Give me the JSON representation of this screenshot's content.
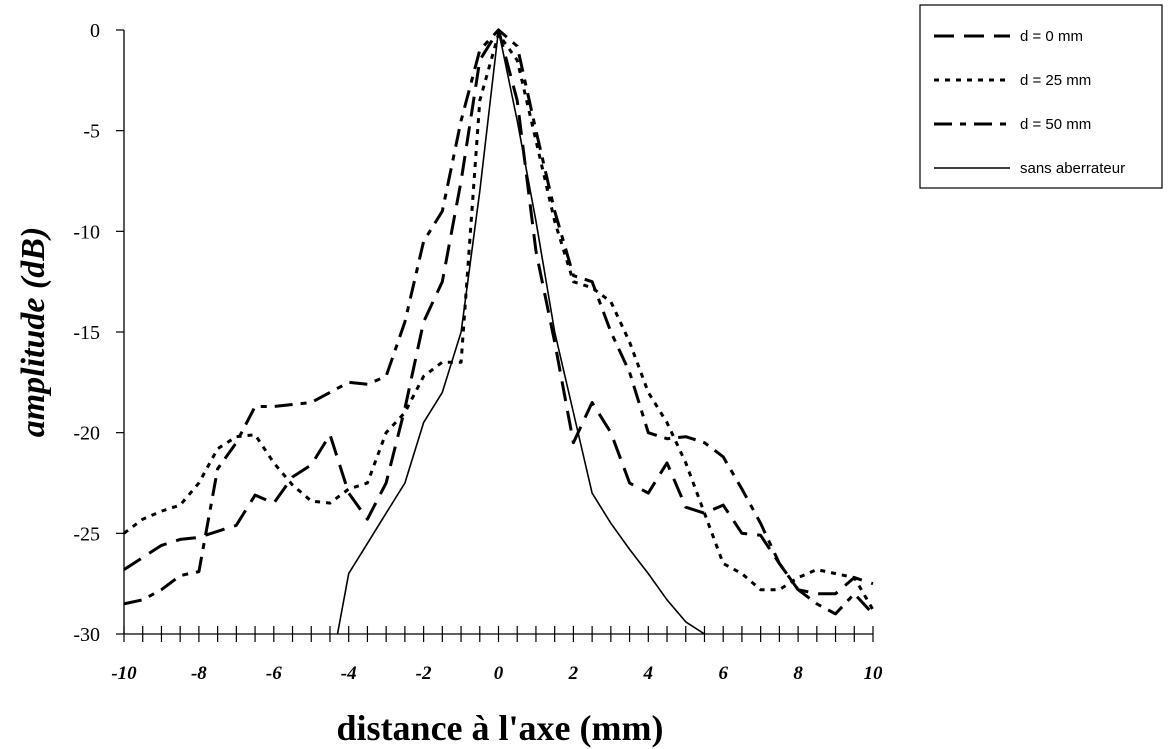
{
  "chart_data": {
    "type": "line",
    "xlabel": "distance à l'axe (mm)",
    "ylabel": "amplitude (dB)",
    "xlim": [
      -10,
      10
    ],
    "ylim": [
      -30,
      0
    ],
    "xticks": [
      -10,
      -8,
      -6,
      -4,
      -2,
      0,
      2,
      4,
      6,
      8,
      10
    ],
    "xtick_labels": [
      "-10",
      "-8",
      "-6",
      "-4",
      "-2",
      "0",
      "2",
      "4",
      "6",
      "8",
      "10"
    ],
    "yticks": [
      0,
      -5,
      -10,
      -15,
      -20,
      -25,
      -30
    ],
    "ytick_labels": [
      "0",
      "-5",
      "-10",
      "-15",
      "-20",
      "-25",
      "-30"
    ],
    "minor_xtick_step": 0.5,
    "grid": false,
    "legend_position": "top-right",
    "series": [
      {
        "name": "d = 0 mm",
        "style": "long-dash",
        "color": "#000000",
        "x": [
          -10,
          -9.5,
          -9,
          -8.5,
          -8,
          -7.5,
          -7,
          -6.5,
          -6,
          -5.5,
          -5,
          -4.5,
          -4,
          -3.5,
          -3,
          -2.5,
          -2,
          -1.5,
          -1,
          -0.5,
          0,
          0.5,
          1,
          1.5,
          2,
          2.5,
          3,
          3.5,
          4,
          4.5,
          5,
          5.5,
          6,
          6.5,
          7,
          7.5,
          8,
          8.5,
          9,
          9.5,
          10
        ],
        "y": [
          -26.8,
          -26.2,
          -25.6,
          -25.3,
          -25.2,
          -24.9,
          -24.6,
          -23.1,
          -23.5,
          -22.2,
          -21.6,
          -20.1,
          -23.0,
          -24.3,
          -22.5,
          -18.8,
          -14.5,
          -12.5,
          -7.5,
          -1.5,
          0.0,
          -3.5,
          -11.0,
          -15.5,
          -20.5,
          -18.5,
          -20.0,
          -22.5,
          -23.0,
          -21.5,
          -23.7,
          -24.0,
          -23.6,
          -25.0,
          -25.1,
          -26.5,
          -27.8,
          -28.0,
          -28.0,
          -27.2,
          -27.5
        ]
      },
      {
        "name": "d = 25 mm",
        "style": "dotted",
        "color": "#000000",
        "x": [
          -10,
          -9.5,
          -9,
          -8.5,
          -8,
          -7.5,
          -7,
          -6.5,
          -6,
          -5.5,
          -5,
          -4.5,
          -4,
          -3.5,
          -3,
          -2.5,
          -2,
          -1.5,
          -1,
          -0.5,
          0,
          0.5,
          1,
          1.5,
          2,
          2.5,
          3,
          3.5,
          4,
          4.5,
          5,
          5.5,
          6,
          6.5,
          7,
          7.5,
          8,
          8.5,
          9,
          9.5,
          10
        ],
        "y": [
          -25.0,
          -24.3,
          -23.9,
          -23.6,
          -22.5,
          -20.8,
          -20.2,
          -20.1,
          -21.5,
          -22.6,
          -23.4,
          -23.5,
          -22.8,
          -22.5,
          -20.0,
          -19.0,
          -17.2,
          -16.5,
          -16.5,
          -3.5,
          -0.2,
          -1.5,
          -5.5,
          -9.5,
          -12.5,
          -12.8,
          -13.5,
          -15.5,
          -18.0,
          -19.5,
          -21.5,
          -24.0,
          -26.5,
          -27.0,
          -27.8,
          -27.8,
          -27.2,
          -26.8,
          -27.0,
          -27.2,
          -28.8
        ]
      },
      {
        "name": "d = 50 mm",
        "style": "dash-dot",
        "color": "#000000",
        "x": [
          -10,
          -9.5,
          -9,
          -8.5,
          -8,
          -7.5,
          -7,
          -6.5,
          -6,
          -5.5,
          -5,
          -4.5,
          -4,
          -3.5,
          -3,
          -2.5,
          -2,
          -1.5,
          -1,
          -0.5,
          0,
          0.5,
          1,
          1.5,
          2,
          2.5,
          3,
          3.5,
          4,
          4.5,
          5,
          5.5,
          6,
          6.5,
          7,
          7.5,
          8,
          8.5,
          9,
          9.5,
          10
        ],
        "y": [
          -28.5,
          -28.3,
          -27.8,
          -27.1,
          -26.9,
          -21.8,
          -20.5,
          -18.7,
          -18.7,
          -18.6,
          -18.5,
          -18.0,
          -17.5,
          -17.6,
          -17.2,
          -14.5,
          -10.5,
          -9.0,
          -4.5,
          -1.0,
          0.0,
          -0.8,
          -5.0,
          -9.0,
          -12.2,
          -12.5,
          -15.0,
          -17.0,
          -20.0,
          -20.3,
          -20.2,
          -20.5,
          -21.2,
          -22.8,
          -24.5,
          -26.5,
          -27.8,
          -28.5,
          -29.0,
          -28.0,
          -29.0
        ]
      },
      {
        "name": "sans aberrateur",
        "style": "solid",
        "color": "#000000",
        "x": [
          -4.3,
          -4,
          -3.5,
          -3,
          -2.5,
          -2,
          -1.5,
          -1,
          -0.5,
          0,
          0.5,
          1,
          1.5,
          2,
          2.5,
          3,
          3.5,
          4,
          4.5,
          5,
          5.5
        ],
        "y": [
          -30.0,
          -27.0,
          -25.5,
          -24.0,
          -22.5,
          -19.5,
          -18.0,
          -15.0,
          -8.0,
          0.0,
          -4.5,
          -9.5,
          -15.0,
          -19.0,
          -23.0,
          -24.5,
          -25.8,
          -27.0,
          -28.3,
          -29.4,
          -30.0
        ]
      }
    ]
  }
}
